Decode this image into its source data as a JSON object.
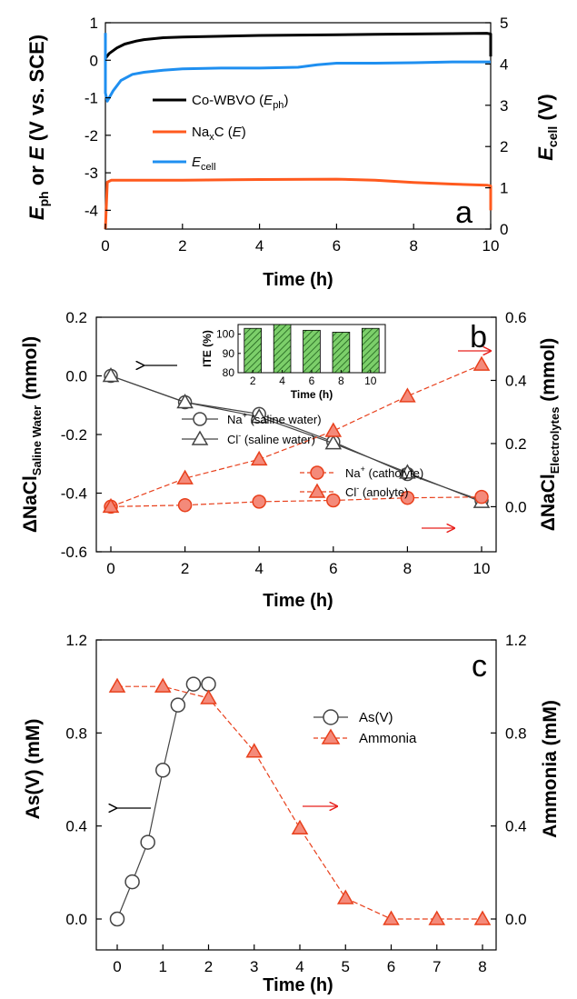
{
  "chart_data": [
    {
      "panel": "a",
      "type": "line",
      "xlabel": "Time (h)",
      "ylabel_left": "E_ph or E (V vs. SCE)",
      "ylabel_right": "E_cell (V)",
      "xlim": [
        0,
        10
      ],
      "ylim_left": [
        -4.5,
        1
      ],
      "ylim_right": [
        0,
        5
      ],
      "xticks": [
        0,
        2,
        4,
        6,
        8,
        10
      ],
      "yticks_left": [
        1,
        0,
        -1,
        -2,
        -3,
        -4
      ],
      "yticks_right": [
        5,
        4,
        3,
        2,
        1,
        0
      ],
      "series": [
        {
          "name": "Co-WBVO (E_ph)",
          "color": "#000000",
          "axis": "left",
          "x": [
            0,
            0.1,
            0.3,
            0.5,
            0.8,
            1,
            1.5,
            2,
            3,
            4,
            5,
            6,
            7,
            8,
            9,
            9.9,
            10,
            10
          ],
          "y": [
            0.05,
            0.18,
            0.33,
            0.43,
            0.51,
            0.55,
            0.6,
            0.62,
            0.64,
            0.66,
            0.67,
            0.68,
            0.69,
            0.7,
            0.71,
            0.72,
            0.7,
            0.1
          ]
        },
        {
          "name": "NaxC (E)",
          "color": "#ff5a1e",
          "axis": "left",
          "x": [
            0,
            0.05,
            0.15,
            0.5,
            1,
            2,
            4,
            6,
            7,
            8,
            9,
            9.9,
            10,
            10
          ],
          "y": [
            -4.5,
            -3.25,
            -3.2,
            -3.2,
            -3.2,
            -3.2,
            -3.18,
            -3.17,
            -3.2,
            -3.26,
            -3.3,
            -3.33,
            -3.35,
            -4.0
          ]
        },
        {
          "name": "E_cell",
          "color": "#1f8ff0",
          "axis": "right",
          "x": [
            0,
            0,
            0.05,
            0.2,
            0.4,
            0.7,
            1,
            1.5,
            2,
            3,
            4,
            5,
            5.5,
            6,
            7,
            8,
            9,
            10,
            10
          ],
          "y": [
            4.75,
            3.3,
            3.1,
            3.35,
            3.6,
            3.75,
            3.8,
            3.85,
            3.88,
            3.9,
            3.9,
            3.92,
            3.98,
            4.02,
            4.02,
            4.03,
            4.05,
            4.05,
            4.05
          ]
        }
      ]
    },
    {
      "panel": "b",
      "type": "line",
      "xlabel": "Time (h)",
      "ylabel_left": "ΔNaCl Saline Water (mmol)",
      "ylabel_right": "ΔNaCl Electrolytes (mmol)",
      "xlim": [
        0,
        10
      ],
      "ylim_left": [
        -0.6,
        0.2
      ],
      "ylim_right": [
        -0.05,
        0.6
      ],
      "xticks": [
        0,
        2,
        4,
        6,
        8,
        10
      ],
      "yticks_left": [
        0.2,
        0.0,
        -0.2,
        -0.4,
        -0.6
      ],
      "yticks_right": [
        0.6,
        0.4,
        0.2,
        0.0
      ],
      "ytick_labels_left": [
        "0.2",
        "0.0",
        "-0.2",
        "-0.4",
        "-0.6"
      ],
      "ytick_labels_right": [
        "0.6",
        "0.4",
        "0.2",
        "0.0"
      ],
      "x": [
        0,
        2,
        4,
        6,
        8,
        10
      ],
      "series": [
        {
          "name": "Na+ (saline water)",
          "axis": "left",
          "marker": "circle",
          "values": [
            0.0,
            -0.09,
            -0.13,
            -0.225,
            -0.335,
            -0.425
          ]
        },
        {
          "name": "Cl- (saline water)",
          "axis": "left",
          "marker": "triangle",
          "values": [
            0.0,
            -0.09,
            -0.14,
            -0.23,
            -0.33,
            -0.43
          ]
        },
        {
          "name": "Na+ (catholyte)",
          "axis": "right",
          "marker": "circle",
          "values": [
            0.0,
            0.005,
            0.016,
            0.02,
            0.028,
            0.031
          ]
        },
        {
          "name": "Cl- (anolyte)",
          "axis": "right",
          "marker": "triangle",
          "values": [
            0.0,
            0.09,
            0.15,
            0.24,
            0.35,
            0.45
          ]
        }
      ],
      "inset": {
        "type": "bar",
        "xlabel": "Time (h)",
        "ylabel": "ITE (%)",
        "categories": [
          "2",
          "4",
          "6",
          "8",
          "10"
        ],
        "values": [
          103,
          105,
          102,
          101,
          103
        ],
        "ylim": [
          80,
          105
        ],
        "yticks": [
          80,
          90,
          100
        ]
      }
    },
    {
      "panel": "c",
      "type": "line",
      "xlabel": "Time (h)",
      "ylabel_left": "As(V) (mM)",
      "ylabel_right": "Ammonia (mM)",
      "xlim": [
        0,
        8
      ],
      "ylim_left": [
        0,
        1.2
      ],
      "ylim_right": [
        0,
        1.2
      ],
      "xticks": [
        0,
        1,
        2,
        3,
        4,
        5,
        6,
        7,
        8
      ],
      "yticks_left": [
        1.2,
        0.8,
        0.4,
        0.0
      ],
      "yticks_right": [
        1.2,
        0.8,
        0.4,
        0.0
      ],
      "ytick_labels_left": [
        "1.2",
        "0.8",
        "0.4",
        "0.0"
      ],
      "ytick_labels_right": [
        "1.2",
        "0.8",
        "0.4",
        "0.0"
      ],
      "series": [
        {
          "name": "As(V)",
          "axis": "left",
          "marker": "circle",
          "x": [
            0,
            0.33,
            0.67,
            1.0,
            1.33,
            1.67,
            2.0
          ],
          "y": [
            0.0,
            0.16,
            0.33,
            0.64,
            0.92,
            1.01,
            1.01
          ]
        },
        {
          "name": "Ammonia",
          "axis": "right",
          "marker": "triangle",
          "x": [
            0,
            1,
            2,
            3,
            4,
            5,
            6,
            7,
            8
          ],
          "y": [
            1.0,
            1.0,
            0.95,
            0.72,
            0.39,
            0.09,
            0.0,
            0.0,
            0.0
          ]
        }
      ]
    }
  ],
  "texts": {
    "a_xlabel": "Time (h)",
    "a_ylabel_E": "E",
    "a_ylabel_ph": "ph",
    "a_ylabel_or": " or ",
    "a_ylabel_E2": "E",
    "a_ylabel_rest": " (V vs. SCE)",
    "a_ylabel_right_E": "E",
    "a_ylabel_right_sub": "cell",
    "a_ylabel_right_unit": " (V)",
    "a_leg1": "Co-WBVO (",
    "a_leg1_E": "E",
    "a_leg1_sub": "ph",
    "a_leg1_end": ")",
    "a_leg2": "Na",
    "a_leg2_sub": "x",
    "a_leg2_mid": "C (",
    "a_leg2_E": "E",
    "a_leg2_end": ")",
    "a_leg3_E": "E",
    "a_leg3_sub": "cell",
    "a_panel": "a",
    "b_xlabel": "Time (h)",
    "b_ylabel_left_main": "ΔNaCl",
    "b_ylabel_left_sub": "Saline Water",
    "b_ylabel_left_unit": " (mmol)",
    "b_ylabel_right_main": "ΔNaCl",
    "b_ylabel_right_sub": "Electrolytes",
    "b_ylabel_right_unit": " (mmol)",
    "b_leg1_a": "Na",
    "b_leg1_sup": "+",
    "b_leg1_b": " (saline water)",
    "b_leg2_a": "Cl",
    "b_leg2_sup": "-",
    "b_leg2_b": " (saline water)",
    "b_leg3_a": "Na",
    "b_leg3_sup": "+",
    "b_leg3_b": " (catholyte)",
    "b_leg4_a": "Cl",
    "b_leg4_sup": "-",
    "b_leg4_b": " (anolyte)",
    "b_panel": "b",
    "c_xlabel": "Time (h)",
    "c_ylabel_left": "As(V) (mM)",
    "c_ylabel_right": "Ammonia (mM)",
    "c_leg1": "As(V)",
    "c_leg2": "Ammonia",
    "c_panel": "c"
  },
  "colors": {
    "black": "#000000",
    "orange": "#ff5a1e",
    "blue": "#1f8ff0",
    "marker_fill_orange": "#f48a7a",
    "marker_stroke_orange": "#e8401c",
    "hollow_stroke": "#444444",
    "inset_bar": "#4caf50"
  }
}
